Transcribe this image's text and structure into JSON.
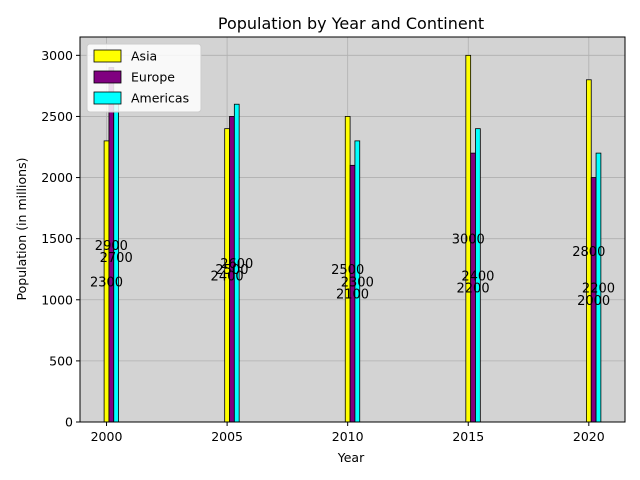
{
  "chart_data": {
    "type": "bar",
    "title": "Population by Year and Continent",
    "xlabel": "Year",
    "ylabel": "Population (in millions)",
    "categories": [
      "2000",
      "2005",
      "2010",
      "2015",
      "2020"
    ],
    "x_ticks": [
      2000,
      2005,
      2010,
      2015,
      2020
    ],
    "y_ticks": [
      0,
      500,
      1000,
      1500,
      2000,
      2500,
      3000
    ],
    "xlim": [
      1998.9,
      2021.5
    ],
    "ylim": [
      0,
      3150
    ],
    "series": [
      {
        "name": "Asia",
        "color": "#ffff00",
        "values": [
          2300,
          2400,
          2500,
          3000,
          2800
        ]
      },
      {
        "name": "Europe",
        "color": "#800080",
        "values": [
          2900,
          2500,
          2100,
          2200,
          2000
        ]
      },
      {
        "name": "Americas",
        "color": "#00ffff",
        "values": [
          2700,
          2600,
          2300,
          2400,
          2200
        ]
      }
    ],
    "background": "#d3d3d3",
    "grid": true,
    "legend_position": "top-left",
    "data_labels": true
  }
}
